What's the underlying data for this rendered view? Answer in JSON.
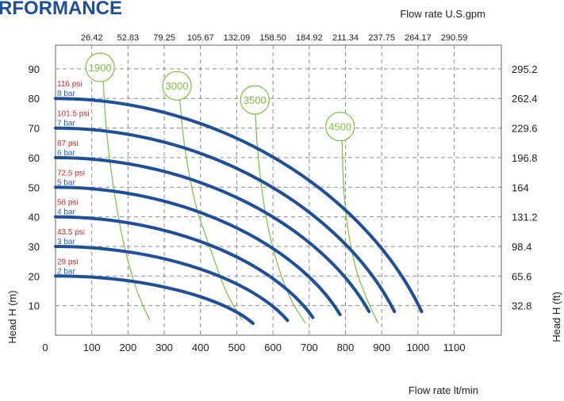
{
  "title_fragment": "RFORMANCE",
  "chart_data": {
    "type": "line",
    "x_label_bottom": "Flow rate  lt/min",
    "x_label_top": "Flow rate U.S.gpm",
    "y_label_left": "Head H (m)",
    "y_label_right": "Head H (ft)",
    "x_ticks": [
      0,
      100,
      200,
      300,
      400,
      500,
      600,
      700,
      800,
      900,
      1000,
      1100
    ],
    "x_top_ticks": [
      "26.42",
      "52.83",
      "79.25",
      "105.67",
      "132.09",
      "158.50",
      "184.92",
      "211.34",
      "237.75",
      "264.17",
      "290.59"
    ],
    "y_ticks": [
      10,
      20,
      30,
      40,
      50,
      60,
      70,
      80,
      90
    ],
    "y_right_ticks": [
      "32.8",
      "65.6",
      "98.4",
      "131.2",
      "164",
      "196.8",
      "229.6",
      "262.4",
      "295.2"
    ],
    "xlim": [
      0,
      1230
    ],
    "ylim": [
      0,
      98
    ],
    "pressure_labels": [
      {
        "psi": "116 psi",
        "bar": "8 bar",
        "head": 80
      },
      {
        "psi": "101.5 psi",
        "bar": "7 bar",
        "head": 70
      },
      {
        "psi": "87 psi",
        "bar": "6 bar",
        "head": 60
      },
      {
        "psi": "72.5 psi",
        "bar": "5 bar",
        "head": 50
      },
      {
        "psi": "58 psi",
        "bar": "4 bar",
        "head": 40
      },
      {
        "psi": "43.5 psi",
        "bar": "3 bar",
        "head": 30
      },
      {
        "psi": "29 psi",
        "bar": "2 bar",
        "head": 20
      }
    ],
    "pressure_curves": [
      {
        "head": 20,
        "end_flow": 545,
        "end_head": 4
      },
      {
        "head": 30,
        "end_flow": 640,
        "end_head": 5
      },
      {
        "head": 40,
        "end_flow": 710,
        "end_head": 6
      },
      {
        "head": 50,
        "end_flow": 785,
        "end_head": 7
      },
      {
        "head": 60,
        "end_flow": 865,
        "end_head": 8
      },
      {
        "head": 70,
        "end_flow": 935,
        "end_head": 8
      },
      {
        "head": 80,
        "end_flow": 1010,
        "end_head": 8
      }
    ],
    "rpm_curves": [
      {
        "label": "1900",
        "points": [
          [
            130,
            90
          ],
          [
            140,
            70
          ],
          [
            160,
            50
          ],
          [
            190,
            30
          ],
          [
            225,
            15
          ],
          [
            260,
            5
          ]
        ]
      },
      {
        "label": "3000",
        "points": [
          [
            340,
            84
          ],
          [
            355,
            65
          ],
          [
            385,
            45
          ],
          [
            425,
            30
          ],
          [
            470,
            15
          ],
          [
            515,
            5
          ]
        ]
      },
      {
        "label": "3500",
        "points": [
          [
            550,
            79
          ],
          [
            558,
            62
          ],
          [
            578,
            42
          ],
          [
            610,
            25
          ],
          [
            650,
            12
          ],
          [
            690,
            4
          ]
        ]
      },
      {
        "label": "4500",
        "points": [
          [
            790,
            70
          ],
          [
            795,
            50
          ],
          [
            808,
            35
          ],
          [
            830,
            22
          ],
          [
            860,
            12
          ],
          [
            890,
            4
          ]
        ]
      }
    ],
    "rpm_bubbles": [
      {
        "label": "1900",
        "flow": 123,
        "head": 90.5
      },
      {
        "label": "3000",
        "flow": 335,
        "head": 84.3
      },
      {
        "label": "3500",
        "flow": 550,
        "head": 79.5
      },
      {
        "label": "4500",
        "flow": 785,
        "head": 70.5
      }
    ],
    "colors": {
      "pressure": "#1f4f99",
      "rpm": "#7fbf3b",
      "psi": "#d7282f",
      "bar": "#2a63ad",
      "grid": "#8a8a8a"
    },
    "grid": true
  }
}
